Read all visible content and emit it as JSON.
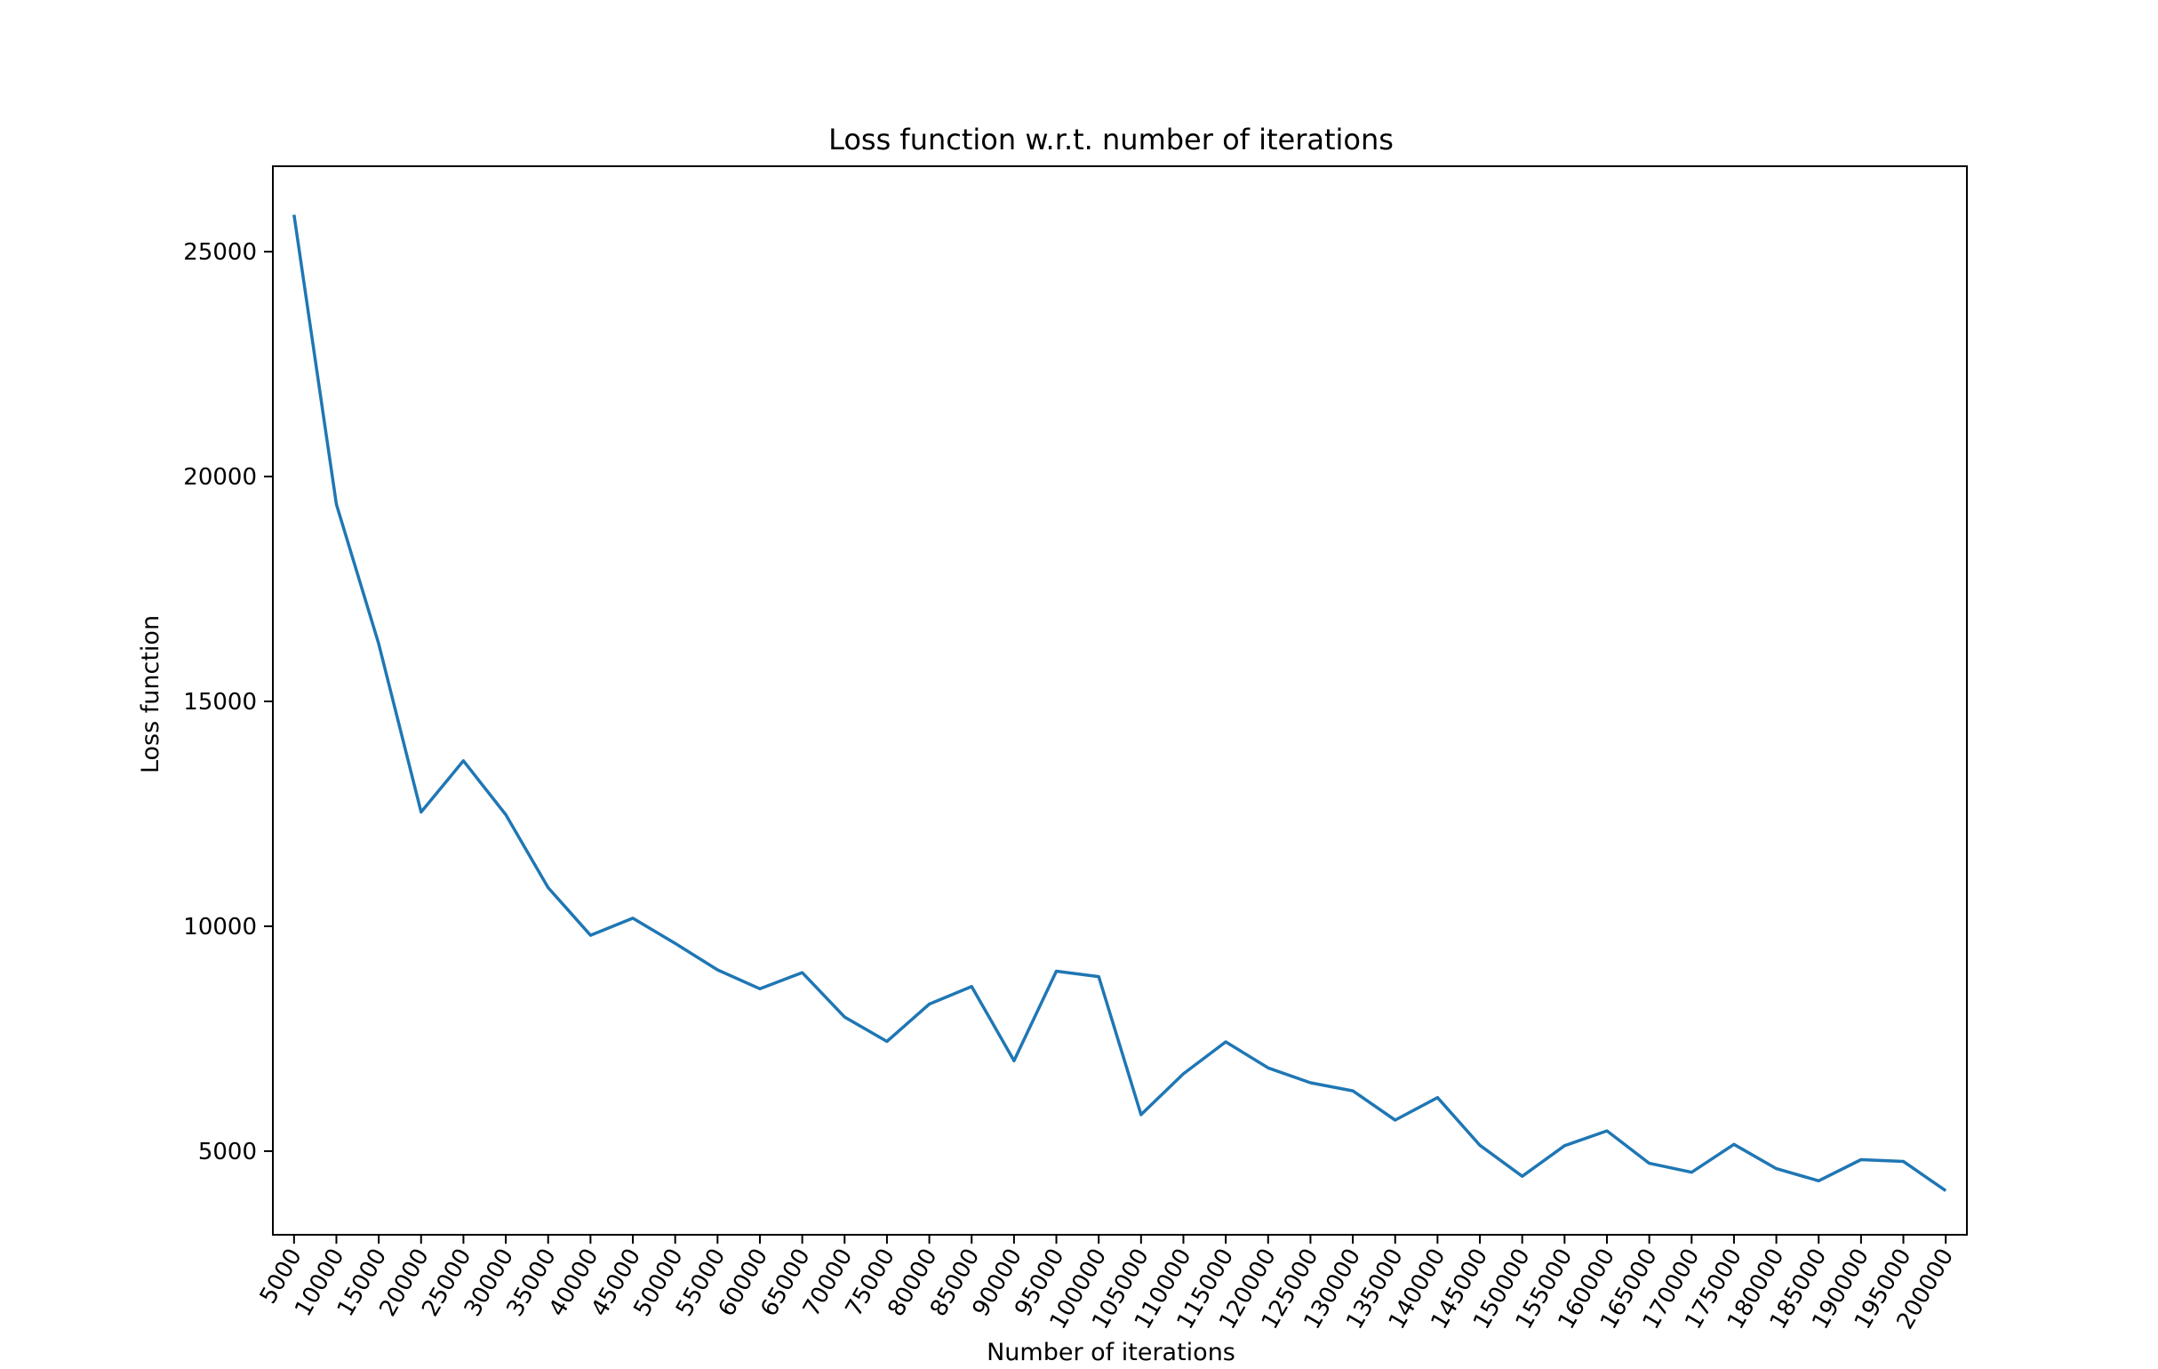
{
  "chart_data": {
    "type": "line",
    "title": "Loss function w.r.t. number of iterations",
    "xlabel": "Number of iterations",
    "ylabel": "Loss function",
    "x": [
      5000,
      10000,
      15000,
      20000,
      25000,
      30000,
      35000,
      40000,
      45000,
      50000,
      55000,
      60000,
      65000,
      70000,
      75000,
      80000,
      85000,
      90000,
      95000,
      100000,
      105000,
      110000,
      115000,
      120000,
      125000,
      130000,
      135000,
      140000,
      145000,
      150000,
      155000,
      160000,
      165000,
      170000,
      175000,
      180000,
      185000,
      190000,
      195000,
      200000
    ],
    "x_tick_labels": [
      "5000",
      "10000",
      "15000",
      "20000",
      "25000",
      "30000",
      "35000",
      "40000",
      "45000",
      "50000",
      "55000",
      "60000",
      "65000",
      "70000",
      "75000",
      "80000",
      "85000",
      "90000",
      "95000",
      "100000",
      "105000",
      "110000",
      "115000",
      "120000",
      "125000",
      "130000",
      "135000",
      "140000",
      "145000",
      "150000",
      "155000",
      "160000",
      "165000",
      "170000",
      "175000",
      "180000",
      "185000",
      "190000",
      "195000",
      "200000"
    ],
    "series": [
      {
        "values": [
          25820,
          19380,
          16280,
          12540,
          13680,
          12480,
          10860,
          9800,
          10180,
          9620,
          9030,
          8610,
          8970,
          7980,
          7440,
          8270,
          8660,
          7010,
          9000,
          8880,
          5810,
          6720,
          7430,
          6850,
          6520,
          6340,
          5690,
          6190,
          5130,
          4440,
          5120,
          5450,
          4730,
          4530,
          5150,
          4610,
          4340,
          4810,
          4770,
          4120
        ],
        "color": "#1f77b4"
      }
    ],
    "xlim": [
      2500,
      202500
    ],
    "ylim": [
      3140,
      26900
    ],
    "y_ticks": [
      5000,
      10000,
      15000,
      20000,
      25000
    ],
    "y_tick_labels": [
      "5000",
      "10000",
      "15000",
      "20000",
      "25000"
    ],
    "grid": false,
    "legend": false
  }
}
